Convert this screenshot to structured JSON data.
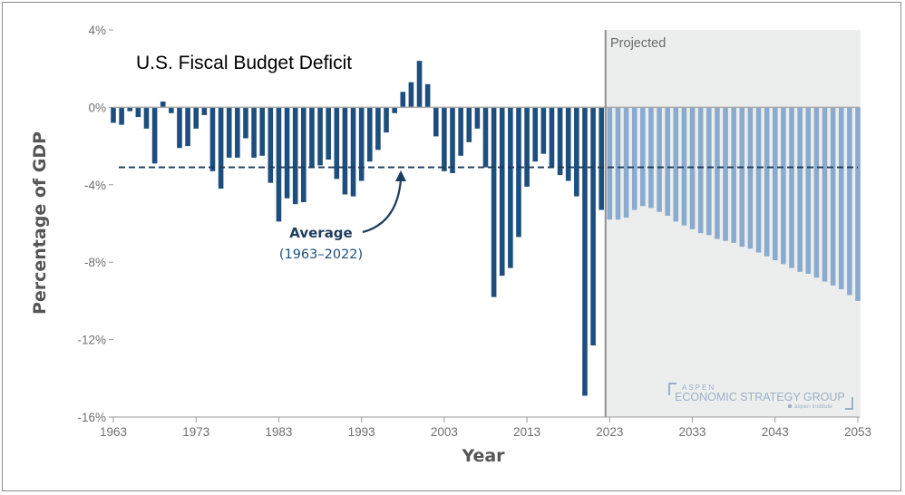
{
  "chart_data": {
    "type": "bar",
    "title": "U.S. Fiscal Budget Deficit",
    "ylabel": "Percentage of GDP",
    "xlabel": "Year",
    "ylim": [
      -16,
      4
    ],
    "xlim": [
      1963,
      2053
    ],
    "y_ticks": [
      "4%",
      "0%",
      "-4%",
      "-8%",
      "-12%",
      "-16%"
    ],
    "x_ticks": [
      "1963",
      "1973",
      "1983",
      "1993",
      "2003",
      "2013",
      "2023",
      "2033",
      "2043",
      "2053"
    ],
    "projected_label": "Projected",
    "projection_start": 2023,
    "average": {
      "value": -3.1,
      "label": "Average",
      "period": "(1963–2022)"
    },
    "series": [
      {
        "type": "historical",
        "color": "#1d4e7e",
        "x": [
          1963,
          1964,
          1965,
          1966,
          1967,
          1968,
          1969,
          1970,
          1971,
          1972,
          1973,
          1974,
          1975,
          1976,
          1977,
          1978,
          1979,
          1980,
          1981,
          1982,
          1983,
          1984,
          1985,
          1986,
          1987,
          1988,
          1989,
          1990,
          1991,
          1992,
          1993,
          1994,
          1995,
          1996,
          1997,
          1998,
          1999,
          2000,
          2001,
          2002,
          2003,
          2004,
          2005,
          2006,
          2007,
          2008,
          2009,
          2010,
          2011,
          2012,
          2013,
          2014,
          2015,
          2016,
          2017,
          2018,
          2019,
          2020,
          2021,
          2022
        ],
        "values": [
          -0.8,
          -0.9,
          -0.2,
          -0.5,
          -1.1,
          -2.9,
          0.3,
          -0.3,
          -2.1,
          -2.0,
          -1.1,
          -0.4,
          -3.3,
          -4.2,
          -2.6,
          -2.6,
          -1.6,
          -2.6,
          -2.5,
          -3.9,
          -5.9,
          -4.7,
          -5.0,
          -4.9,
          -3.1,
          -3.0,
          -2.7,
          -3.7,
          -4.5,
          -4.6,
          -3.8,
          -2.8,
          -2.2,
          -1.3,
          -0.3,
          0.8,
          1.3,
          2.4,
          1.2,
          -1.5,
          -3.3,
          -3.4,
          -2.5,
          -1.8,
          -1.1,
          -3.1,
          -9.8,
          -8.7,
          -8.3,
          -6.7,
          -4.1,
          -2.8,
          -2.4,
          -3.1,
          -3.5,
          -3.8,
          -4.6,
          -14.9,
          -12.3,
          -5.3
        ]
      },
      {
        "type": "projected",
        "color": "#8aabcd",
        "x": [
          2023,
          2024,
          2025,
          2026,
          2027,
          2028,
          2029,
          2030,
          2031,
          2032,
          2033,
          2034,
          2035,
          2036,
          2037,
          2038,
          2039,
          2040,
          2041,
          2042,
          2043,
          2044,
          2045,
          2046,
          2047,
          2048,
          2049,
          2050,
          2051,
          2052,
          2053
        ],
        "values": [
          -5.8,
          -5.8,
          -5.7,
          -5.3,
          -5.1,
          -5.2,
          -5.4,
          -5.6,
          -5.9,
          -6.1,
          -6.3,
          -6.5,
          -6.6,
          -6.8,
          -6.9,
          -7.0,
          -7.2,
          -7.3,
          -7.5,
          -7.7,
          -7.9,
          -8.1,
          -8.3,
          -8.5,
          -8.6,
          -8.8,
          -9.0,
          -9.2,
          -9.4,
          -9.7,
          -10.0
        ]
      }
    ]
  },
  "logo": {
    "small": "ASPEN",
    "main": "ECONOMIC STRATEGY GROUP",
    "sub": "aspen institute"
  },
  "colors": {
    "historical": "#1d4e7e",
    "projected": "#8aabcd",
    "projected_bg": "#eceeee",
    "average_line": "#1d3a58"
  }
}
